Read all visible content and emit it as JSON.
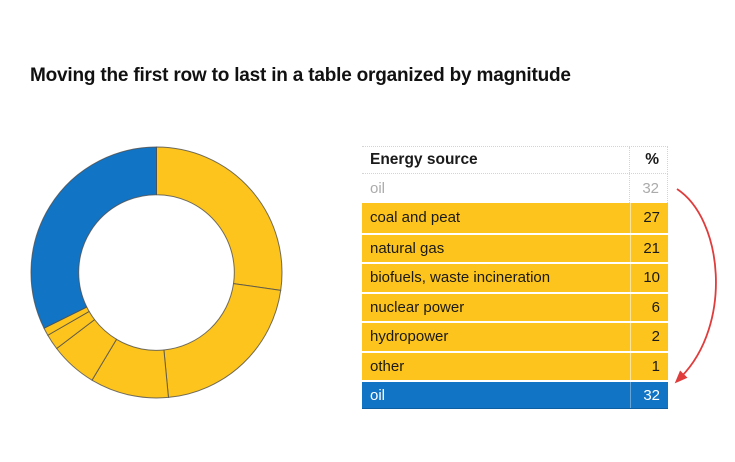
{
  "title": "Moving the first row to last in a table organized by magnitude",
  "colors": {
    "yellow": "#fcc41d",
    "blue": "#1174c5",
    "arrow_red": "#e03c3c",
    "muted_text": "#ababab",
    "dark_text": "#1a1a1a",
    "segment_stroke": "#4d4d4d",
    "dotted_border": "#d4d4d4"
  },
  "table": {
    "headers": [
      "Energy source",
      "%"
    ],
    "rows": [
      {
        "label": "oil",
        "value": "32",
        "style": "muted"
      },
      {
        "label": "coal and peat",
        "value": "27",
        "style": "highlight"
      },
      {
        "label": "natural gas",
        "value": "21",
        "style": "highlight"
      },
      {
        "label": "biofuels, waste incineration",
        "value": "10",
        "style": "highlight"
      },
      {
        "label": "nuclear power",
        "value": "6",
        "style": "highlight"
      },
      {
        "label": "hydropower",
        "value": "2",
        "style": "highlight"
      },
      {
        "label": "other",
        "value": "1",
        "style": "highlight"
      },
      {
        "label": "oil",
        "value": "32",
        "style": "moved"
      }
    ]
  },
  "annotation": {
    "arrow": "curved red arrow from first-row oil (32) down to last-row oil (32)",
    "arrow_color": "#e03c3c"
  },
  "chart_data": {
    "type": "pie",
    "subtype": "donut",
    "title": "",
    "categories": [
      "coal and peat",
      "natural gas",
      "biofuels, waste incineration",
      "nuclear power",
      "hydropower",
      "other",
      "oil"
    ],
    "values": [
      27,
      21,
      10,
      6,
      2,
      1,
      32
    ],
    "colors": [
      "#fcc41d",
      "#fcc41d",
      "#fcc41d",
      "#fcc41d",
      "#fcc41d",
      "#fcc41d",
      "#1174c5"
    ],
    "start_angle_deg": 0,
    "direction": "clockwise",
    "inner_radius_ratio": 0.62,
    "legend": "none"
  }
}
